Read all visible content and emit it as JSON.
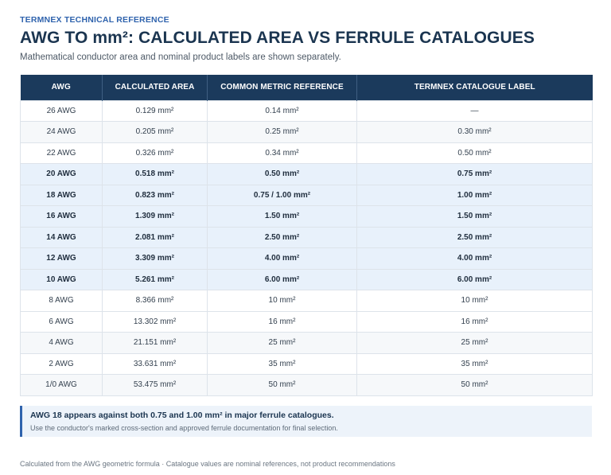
{
  "header": {
    "eyebrow": "TERMNEX TECHNICAL REFERENCE",
    "title": "AWG TO mm²: CALCULATED AREA VS FERRULE CATALOGUES",
    "subtitle": "Mathematical conductor area and nominal product labels are shown separately."
  },
  "table": {
    "columns": [
      "AWG",
      "CALCULATED AREA",
      "COMMON METRIC REFERENCE",
      "TERMNEX CATALOGUE LABEL"
    ],
    "rows": [
      {
        "awg": "26 AWG",
        "calc": "0.129 mm²",
        "metric": "0.14 mm²",
        "label": "—",
        "style": "plain"
      },
      {
        "awg": "24 AWG",
        "calc": "0.205 mm²",
        "metric": "0.25 mm²",
        "label": "0.30 mm²",
        "style": "alt"
      },
      {
        "awg": "22 AWG",
        "calc": "0.326 mm²",
        "metric": "0.34 mm²",
        "label": "0.50 mm²",
        "style": "plain"
      },
      {
        "awg": "20 AWG",
        "calc": "0.518 mm²",
        "metric": "0.50 mm²",
        "label": "0.75 mm²",
        "style": "hl"
      },
      {
        "awg": "18 AWG",
        "calc": "0.823 mm²",
        "metric": "0.75 / 1.00 mm²",
        "label": "1.00 mm²",
        "style": "hl"
      },
      {
        "awg": "16 AWG",
        "calc": "1.309 mm²",
        "metric": "1.50 mm²",
        "label": "1.50 mm²",
        "style": "hl"
      },
      {
        "awg": "14 AWG",
        "calc": "2.081 mm²",
        "metric": "2.50 mm²",
        "label": "2.50 mm²",
        "style": "hl"
      },
      {
        "awg": "12 AWG",
        "calc": "3.309 mm²",
        "metric": "4.00 mm²",
        "label": "4.00 mm²",
        "style": "hl"
      },
      {
        "awg": "10 AWG",
        "calc": "5.261 mm²",
        "metric": "6.00 mm²",
        "label": "6.00 mm²",
        "style": "hl"
      },
      {
        "awg": "8 AWG",
        "calc": "8.366 mm²",
        "metric": "10 mm²",
        "label": "10 mm²",
        "style": "plain"
      },
      {
        "awg": "6 AWG",
        "calc": "13.302 mm²",
        "metric": "16 mm²",
        "label": "16 mm²",
        "style": "plain"
      },
      {
        "awg": "4 AWG",
        "calc": "21.151 mm²",
        "metric": "25 mm²",
        "label": "25 mm²",
        "style": "alt"
      },
      {
        "awg": "2 AWG",
        "calc": "33.631 mm²",
        "metric": "35 mm²",
        "label": "35 mm²",
        "style": "plain"
      },
      {
        "awg": "1/0 AWG",
        "calc": "53.475 mm²",
        "metric": "50 mm²",
        "label": "50 mm²",
        "style": "alt"
      }
    ]
  },
  "note": {
    "title": "AWG 18 appears against both 0.75 and 1.00 mm² in major ferrule catalogues.",
    "text": "Use the conductor's marked cross-section and approved ferrule documentation for final selection."
  },
  "footer": "Calculated from the AWG geometric formula · Catalogue values are nominal references, not product recommendations",
  "colors": {
    "header_bg": "#1b3a5c",
    "accent": "#2f63ad",
    "highlight_row": "#e8f1fb"
  }
}
